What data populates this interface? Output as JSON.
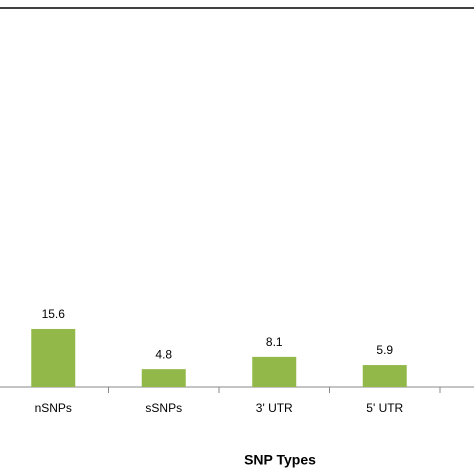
{
  "chart_data": {
    "type": "bar",
    "x_label": "SNP Types",
    "categories": [
      "nSNPs",
      "sSNPs",
      "3' UTR",
      "5' UTR"
    ],
    "values": [
      15.6,
      4.8,
      8.1,
      5.9
    ],
    "color": "#92b84a",
    "ylim": [
      0,
      100
    ]
  }
}
